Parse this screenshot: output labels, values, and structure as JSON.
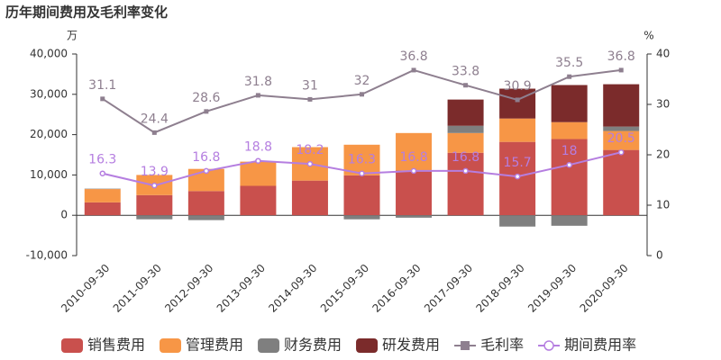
{
  "chart_data": {
    "type": "bar",
    "title": "历年期间费用及毛利率变化",
    "y_label": "万",
    "y2_label": "%",
    "categories": [
      "2010-09-30",
      "2011-09-30",
      "2012-09-30",
      "2013-09-30",
      "2014-09-30",
      "2015-09-30",
      "2016-09-30",
      "2017-09-30",
      "2018-09-30",
      "2019-09-30",
      "2020-09-30"
    ],
    "series": [
      {
        "name": "销售费用",
        "type": "bar",
        "color": "#c9504d",
        "values": [
          3200,
          5000,
          6000,
          7300,
          8600,
          9900,
          11100,
          15500,
          18200,
          18900,
          16200
        ]
      },
      {
        "name": "管理费用",
        "type": "bar",
        "color": "#f79646",
        "values": [
          3300,
          5000,
          5500,
          6000,
          8300,
          7600,
          9300,
          4900,
          5800,
          4200,
          4700
        ]
      },
      {
        "name": "财务费用",
        "type": "bar",
        "color": "#7f7f7f",
        "values": [
          100,
          -1000,
          -1200,
          0,
          0,
          -1000,
          -600,
          1800,
          -2800,
          -2600,
          1100
        ]
      },
      {
        "name": "研发费用",
        "type": "bar",
        "color": "#7b2b2b",
        "values": [
          0,
          0,
          0,
          0,
          0,
          0,
          0,
          6500,
          7400,
          9200,
          10500
        ]
      },
      {
        "name": "毛利率",
        "type": "line",
        "axis": "y2",
        "marker": "square",
        "color": "#8e7f8f",
        "values": [
          31.1,
          24.4,
          28.6,
          31.8,
          31,
          32,
          36.8,
          33.8,
          30.9,
          35.5,
          36.8
        ]
      },
      {
        "name": "期间费用率",
        "type": "line",
        "axis": "y2",
        "marker": "circle",
        "color": "#b57ee0",
        "values": [
          16.3,
          13.9,
          16.8,
          18.8,
          18.2,
          16.3,
          16.8,
          16.8,
          15.7,
          18,
          20.5
        ]
      }
    ],
    "ylim": [
      -10000,
      40000
    ],
    "yticks": [
      {
        "value": -10000,
        "label": "-10,000"
      },
      0,
      {
        "value": 10000,
        "label": "10,000"
      },
      {
        "value": 20000,
        "label": "20,000"
      },
      {
        "value": 30000,
        "label": "30,000"
      },
      {
        "value": 40000,
        "label": "40,000"
      }
    ],
    "y2lim": [
      0,
      40
    ],
    "y2ticks": [
      0,
      10,
      20,
      30,
      40
    ],
    "legend": "bottom"
  }
}
